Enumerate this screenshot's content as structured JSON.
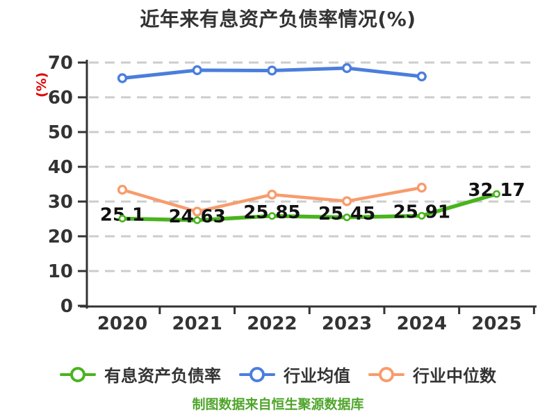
{
  "title": "近年来有息资产负债率情况(%)",
  "y_axis_unit": "(%)",
  "footer": "制图数据来自恒生聚源数据库",
  "colors": {
    "green": "#49b41e",
    "blue": "#4a7edd",
    "orange": "#f79c6d",
    "axis": "#333333",
    "tick_text": "#333333",
    "gridline": "#cccccc",
    "point_label_text": "#111111",
    "unit_red": "#e00000",
    "footer_green": "#4fa52b"
  },
  "legend": {
    "items": [
      {
        "label": "有息资产负债率",
        "color": "#49b41e"
      },
      {
        "label": "行业均值",
        "color": "#4a7edd"
      },
      {
        "label": "行业中位数",
        "color": "#f79c6d"
      }
    ]
  },
  "chart_data": {
    "type": "line",
    "title": "近年来有息资产负债率情况(%)",
    "ylabel": "(%)",
    "x": [
      "2020",
      "2021",
      "2022",
      "2023",
      "2024",
      "2025"
    ],
    "yticks": [
      0,
      10,
      20,
      30,
      40,
      50,
      60,
      70
    ],
    "ylim": [
      0,
      70
    ],
    "grid": "horizontal-dashed",
    "legend_position": "bottom",
    "series": [
      {
        "name": "有息资产负债率",
        "color": "#49b41e",
        "values": [
          25.1,
          24.63,
          25.85,
          25.45,
          25.91,
          32.17
        ],
        "point_labels": [
          "25.1",
          "24.63",
          "25.85",
          "25.45",
          "25.91",
          "32.17"
        ],
        "show_labels": true
      },
      {
        "name": "行业均值",
        "color": "#4a7edd",
        "values": [
          65.5,
          67.8,
          67.7,
          68.4,
          66
        ],
        "show_labels": false
      },
      {
        "name": "行业中位数",
        "color": "#f79c6d",
        "values": [
          33.4,
          27.1,
          32,
          30.1,
          34
        ],
        "show_labels": false
      }
    ]
  }
}
